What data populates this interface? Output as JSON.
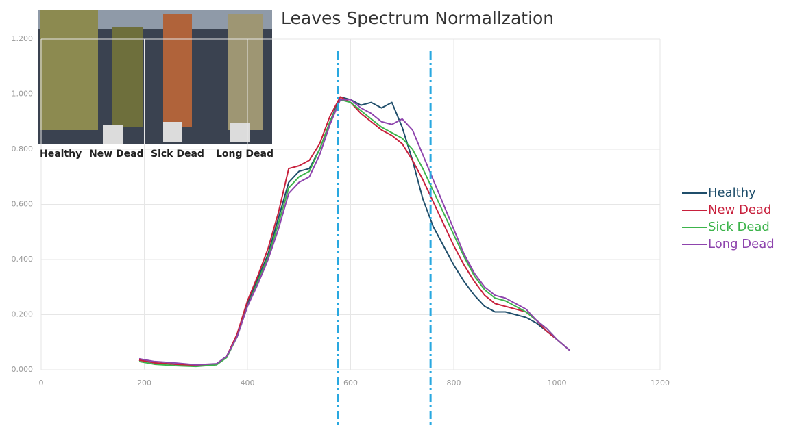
{
  "chart_data": {
    "type": "line",
    "title": "Leaves Spectrum Normallzation",
    "x": [
      190,
      220,
      260,
      300,
      340,
      360,
      380,
      400,
      420,
      440,
      460,
      480,
      500,
      520,
      540,
      560,
      580,
      600,
      620,
      640,
      660,
      680,
      700,
      720,
      740,
      760,
      780,
      800,
      820,
      840,
      860,
      880,
      900,
      920,
      940,
      960,
      980,
      1000,
      1025
    ],
    "series": [
      {
        "name": "Healthy",
        "color": "#1f4e6b",
        "values": [
          0.035,
          0.025,
          0.02,
          0.015,
          0.02,
          0.05,
          0.12,
          0.24,
          0.33,
          0.42,
          0.55,
          0.68,
          0.72,
          0.73,
          0.8,
          0.9,
          0.99,
          0.98,
          0.96,
          0.97,
          0.95,
          0.97,
          0.88,
          0.76,
          0.62,
          0.52,
          0.45,
          0.38,
          0.32,
          0.27,
          0.23,
          0.21,
          0.21,
          0.2,
          0.19,
          0.17,
          0.14,
          0.11,
          0.07
        ]
      },
      {
        "name": "New Dead",
        "color": "#c8203c",
        "values": [
          0.035,
          0.025,
          0.02,
          0.015,
          0.02,
          0.05,
          0.13,
          0.25,
          0.34,
          0.44,
          0.57,
          0.73,
          0.74,
          0.76,
          0.82,
          0.92,
          0.99,
          0.97,
          0.93,
          0.9,
          0.87,
          0.85,
          0.82,
          0.76,
          0.69,
          0.61,
          0.53,
          0.45,
          0.38,
          0.32,
          0.27,
          0.24,
          0.23,
          0.22,
          0.21,
          0.18,
          0.14,
          0.11,
          0.07
        ]
      },
      {
        "name": "Sick Dead",
        "color": "#3cb44b",
        "values": [
          0.03,
          0.02,
          0.015,
          0.012,
          0.018,
          0.045,
          0.12,
          0.23,
          0.32,
          0.41,
          0.53,
          0.66,
          0.7,
          0.72,
          0.8,
          0.9,
          0.98,
          0.97,
          0.94,
          0.91,
          0.88,
          0.86,
          0.84,
          0.8,
          0.73,
          0.65,
          0.57,
          0.49,
          0.41,
          0.34,
          0.29,
          0.26,
          0.25,
          0.23,
          0.21,
          0.18,
          0.15,
          0.11,
          0.07
        ]
      },
      {
        "name": "Long Dead",
        "color": "#8e44ad",
        "values": [
          0.04,
          0.03,
          0.025,
          0.018,
          0.022,
          0.05,
          0.12,
          0.23,
          0.31,
          0.4,
          0.51,
          0.64,
          0.68,
          0.7,
          0.78,
          0.89,
          0.98,
          0.98,
          0.95,
          0.93,
          0.9,
          0.89,
          0.91,
          0.87,
          0.78,
          0.69,
          0.6,
          0.51,
          0.42,
          0.35,
          0.3,
          0.27,
          0.26,
          0.24,
          0.22,
          0.18,
          0.15,
          0.11,
          0.07
        ]
      }
    ],
    "xlim": [
      0,
      1200
    ],
    "xticks": [
      0,
      200,
      400,
      600,
      800,
      1000,
      1200
    ],
    "ylim": [
      0,
      1.2
    ],
    "yticks": [
      {
        "value": 0,
        "label": "0.000"
      },
      {
        "value": 0.2,
        "label": "0.200"
      },
      {
        "value": 0.4,
        "label": "0.400"
      },
      {
        "value": 0.6,
        "label": "0.600"
      },
      {
        "value": 0.8,
        "label": "0.800"
      },
      {
        "value": 1,
        "label": "1.000"
      },
      {
        "value": 1.2,
        "label": "1.200"
      }
    ],
    "grid": true,
    "legend": "right",
    "vlines": [
      575,
      755
    ],
    "vline_color": "#29a8e0",
    "photo_labels": [
      "Healthy",
      "New Dead",
      "Sick Dead",
      "Long Dead"
    ]
  }
}
